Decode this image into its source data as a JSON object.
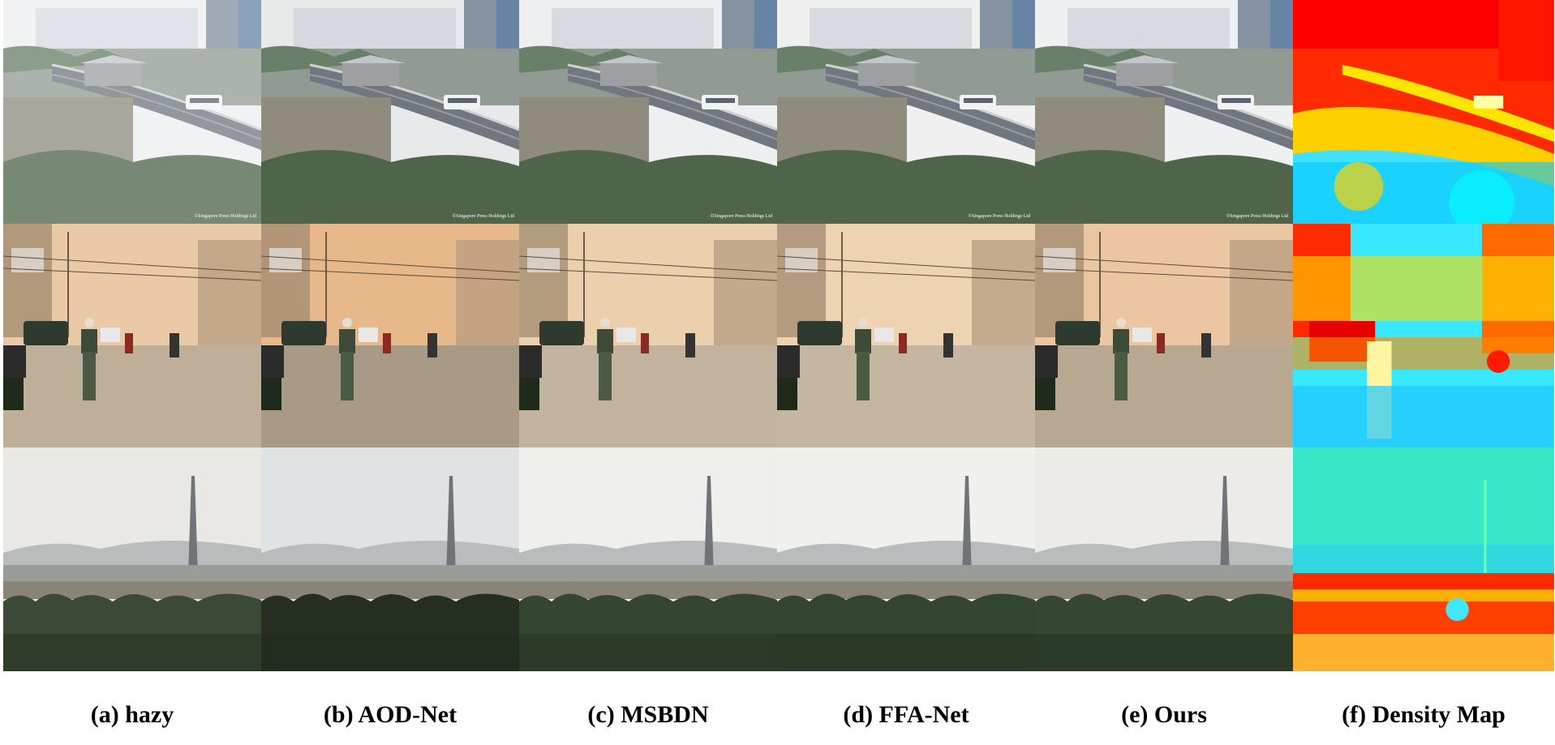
{
  "captions": [
    "(a) hazy",
    "(b) AOD-Net",
    "(c) MSBDN",
    "(d) FFA-Net",
    "(e) Ours",
    "(f) Density Map"
  ],
  "watermark": "©Singapore Press Holdings Ltd",
  "scenes": [
    "elevated-railway",
    "street-pedestrian",
    "tower-landscape"
  ]
}
